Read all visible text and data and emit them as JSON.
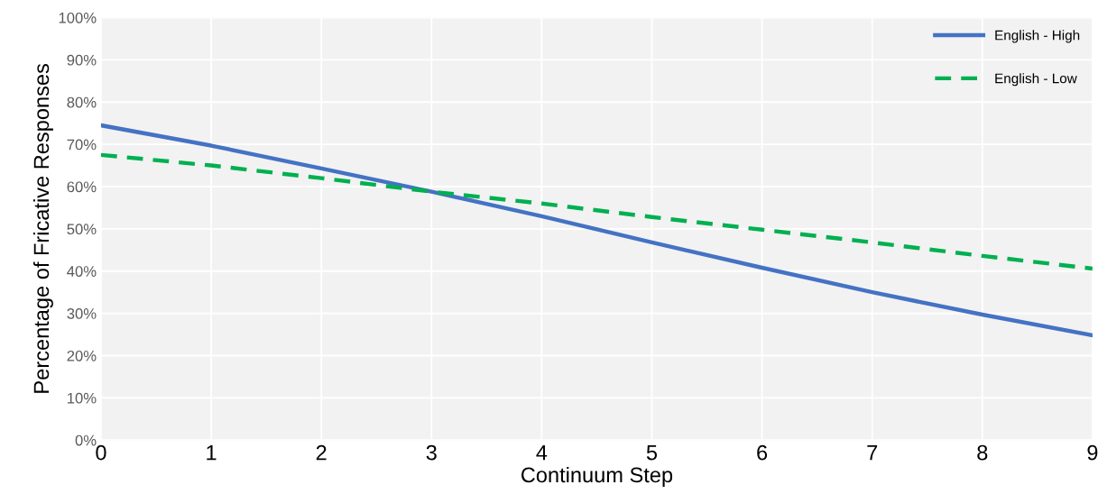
{
  "chart_data": {
    "type": "line",
    "xlabel": "Continuum Step",
    "ylabel": "Percentage of Fricative Responses",
    "x": [
      0,
      1,
      2,
      3,
      4,
      5,
      6,
      7,
      8,
      9
    ],
    "series": [
      {
        "name": "English - High",
        "color": "#4472c4",
        "line_style": "solid",
        "values": [
          74.5,
          69.7,
          64.3,
          58.8,
          53,
          46.8,
          40.8,
          35,
          29.7,
          24.8
        ]
      },
      {
        "name": "English - Low",
        "color": "#00b050",
        "line_style": "dashed",
        "values": [
          67.5,
          65,
          62,
          58.8,
          56,
          52.8,
          49.8,
          46.8,
          43.6,
          40.6
        ]
      }
    ],
    "xlim": [
      0,
      9
    ],
    "xticks": [
      0,
      1,
      2,
      3,
      4,
      5,
      6,
      7,
      8,
      9
    ],
    "ylim": [
      0,
      100
    ],
    "yticks": [
      {
        "value": 0,
        "label": "0%"
      },
      {
        "value": 10,
        "label": "10%"
      },
      {
        "value": 20,
        "label": "20%"
      },
      {
        "value": 30,
        "label": "30%"
      },
      {
        "value": 40,
        "label": "40%"
      },
      {
        "value": 50,
        "label": "50%"
      },
      {
        "value": 60,
        "label": "60%"
      },
      {
        "value": 70,
        "label": "70%"
      },
      {
        "value": 80,
        "label": "80%"
      },
      {
        "value": 90,
        "label": "90%"
      },
      {
        "value": 100,
        "label": "100%"
      }
    ],
    "grid": true,
    "legend": "top right",
    "marker": "none"
  }
}
